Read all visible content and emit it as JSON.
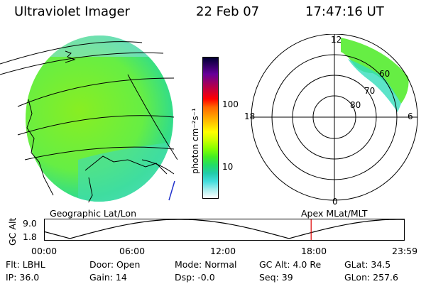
{
  "header": {
    "instrument": "Ultraviolet Imager",
    "date": "22 Feb 07",
    "time": "17:47:16 UT"
  },
  "globe_panel": {
    "caption": "Geographic Lat/Lon"
  },
  "polar_panel": {
    "caption": "Apex MLat/MLT",
    "mlt_labels": {
      "top": "12",
      "bottom": "0",
      "left": "18",
      "right": "6"
    },
    "lat_labels": [
      "80",
      "70",
      "60"
    ]
  },
  "colorbar": {
    "unit_label": "photon cm⁻²s⁻¹",
    "scale": "log",
    "ticks": [
      "100",
      "10"
    ],
    "colors": [
      "#000033",
      "#330066",
      "#660099",
      "#990066",
      "#cc0033",
      "#ff0000",
      "#ff6600",
      "#ff9900",
      "#ffcc00",
      "#ffff00",
      "#ccff00",
      "#88ff00",
      "#44ee22",
      "#22dd66",
      "#22ccaa",
      "#44dddd",
      "#aaeeee",
      "#ffffff"
    ]
  },
  "altitude_panel": {
    "ylabel": "GC Alt",
    "y_ticks": [
      "9.0",
      "1.8"
    ],
    "x_ticks": [
      "00:00",
      "06:00",
      "12:00",
      "18:00",
      "23:59"
    ],
    "current_time_marker": "17:47",
    "marker_color": "#dd0000"
  },
  "status": {
    "filter": "Flt: LBHL",
    "door": "Door: Open",
    "mode": "Mode:  Normal",
    "gc_alt": "GC Alt: 4.0 Re",
    "glat": "GLat:  34.5",
    "ip": "IP: 36.0",
    "gain": "Gain: 14",
    "dsp": "Dsp:    -0.0",
    "seq": "Seq: 39",
    "glon": "GLon: 257.6"
  }
}
